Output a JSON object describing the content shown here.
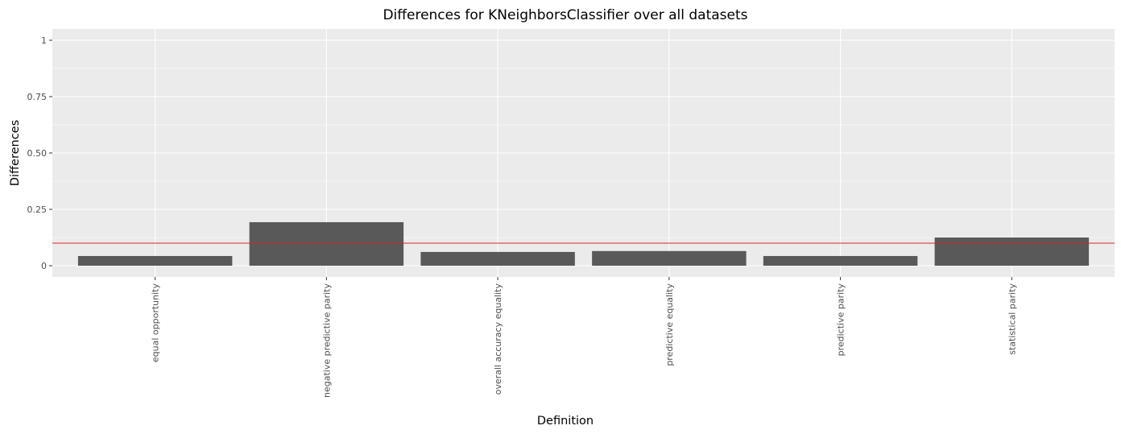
{
  "chart_data": {
    "type": "bar",
    "title": "Differences for KNeighborsClassifier over all datasets",
    "xlabel": "Definition",
    "ylabel": "Differences",
    "categories": [
      "equal opportunity",
      "negative predictive parity",
      "overall accuracy equality",
      "predictive equality",
      "predictive parity",
      "statistical parity"
    ],
    "values": [
      0.043,
      0.193,
      0.061,
      0.065,
      0.043,
      0.125
    ],
    "ylim": [
      -0.05,
      1.05
    ],
    "yticks": [
      0,
      0.25,
      0.5,
      0.75,
      1
    ],
    "ytick_labels": [
      "0",
      "0.25",
      "0.50",
      "0.75",
      "1"
    ],
    "reference_line": {
      "y": 0.1,
      "color": "#d62728"
    },
    "bar_color": "#595959",
    "panel_color": "#ebebeb",
    "grid": true,
    "legend": "none"
  }
}
